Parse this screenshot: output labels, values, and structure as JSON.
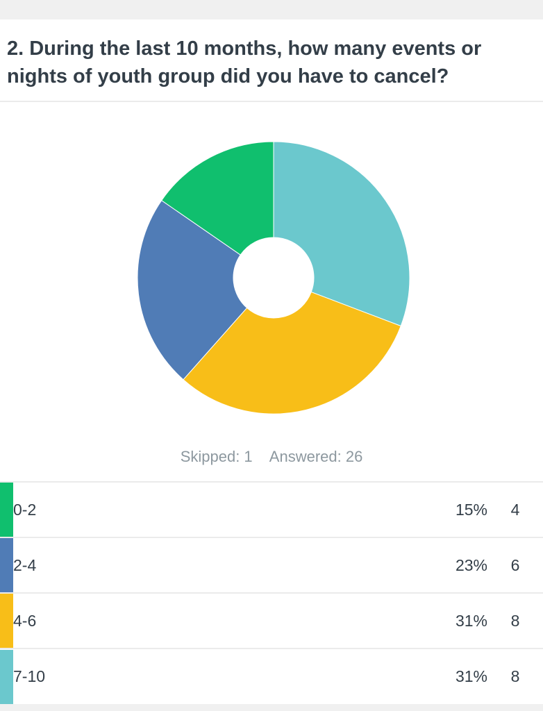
{
  "question": {
    "title_line1": "2. During the last 10 months, how many events or",
    "title_line2": "nights of youth group did you have to cancel?"
  },
  "summary": {
    "skipped": "Skipped: 1",
    "answered": "Answered: 26"
  },
  "rows": [
    {
      "label": "0-2",
      "percent": "15%",
      "count": "4",
      "color": "#10bf6e"
    },
    {
      "label": "2-4",
      "percent": "23%",
      "count": "6",
      "color": "#507cb6"
    },
    {
      "label": "4-6",
      "percent": "31%",
      "count": "8",
      "color": "#f8be18"
    },
    {
      "label": "7-10",
      "percent": "31%",
      "count": "8",
      "color": "#6bc8cd"
    }
  ],
  "chart_data": {
    "type": "pie",
    "donut": true,
    "categories": [
      "0-2",
      "2-4",
      "4-6",
      "7-10"
    ],
    "values": [
      4,
      6,
      8,
      8
    ],
    "colors": [
      "#10bf6e",
      "#507cb6",
      "#f8be18",
      "#6bc8cd"
    ],
    "start": "top, clockwise order: 7-10, 4-6, 2-4, 0-2"
  }
}
